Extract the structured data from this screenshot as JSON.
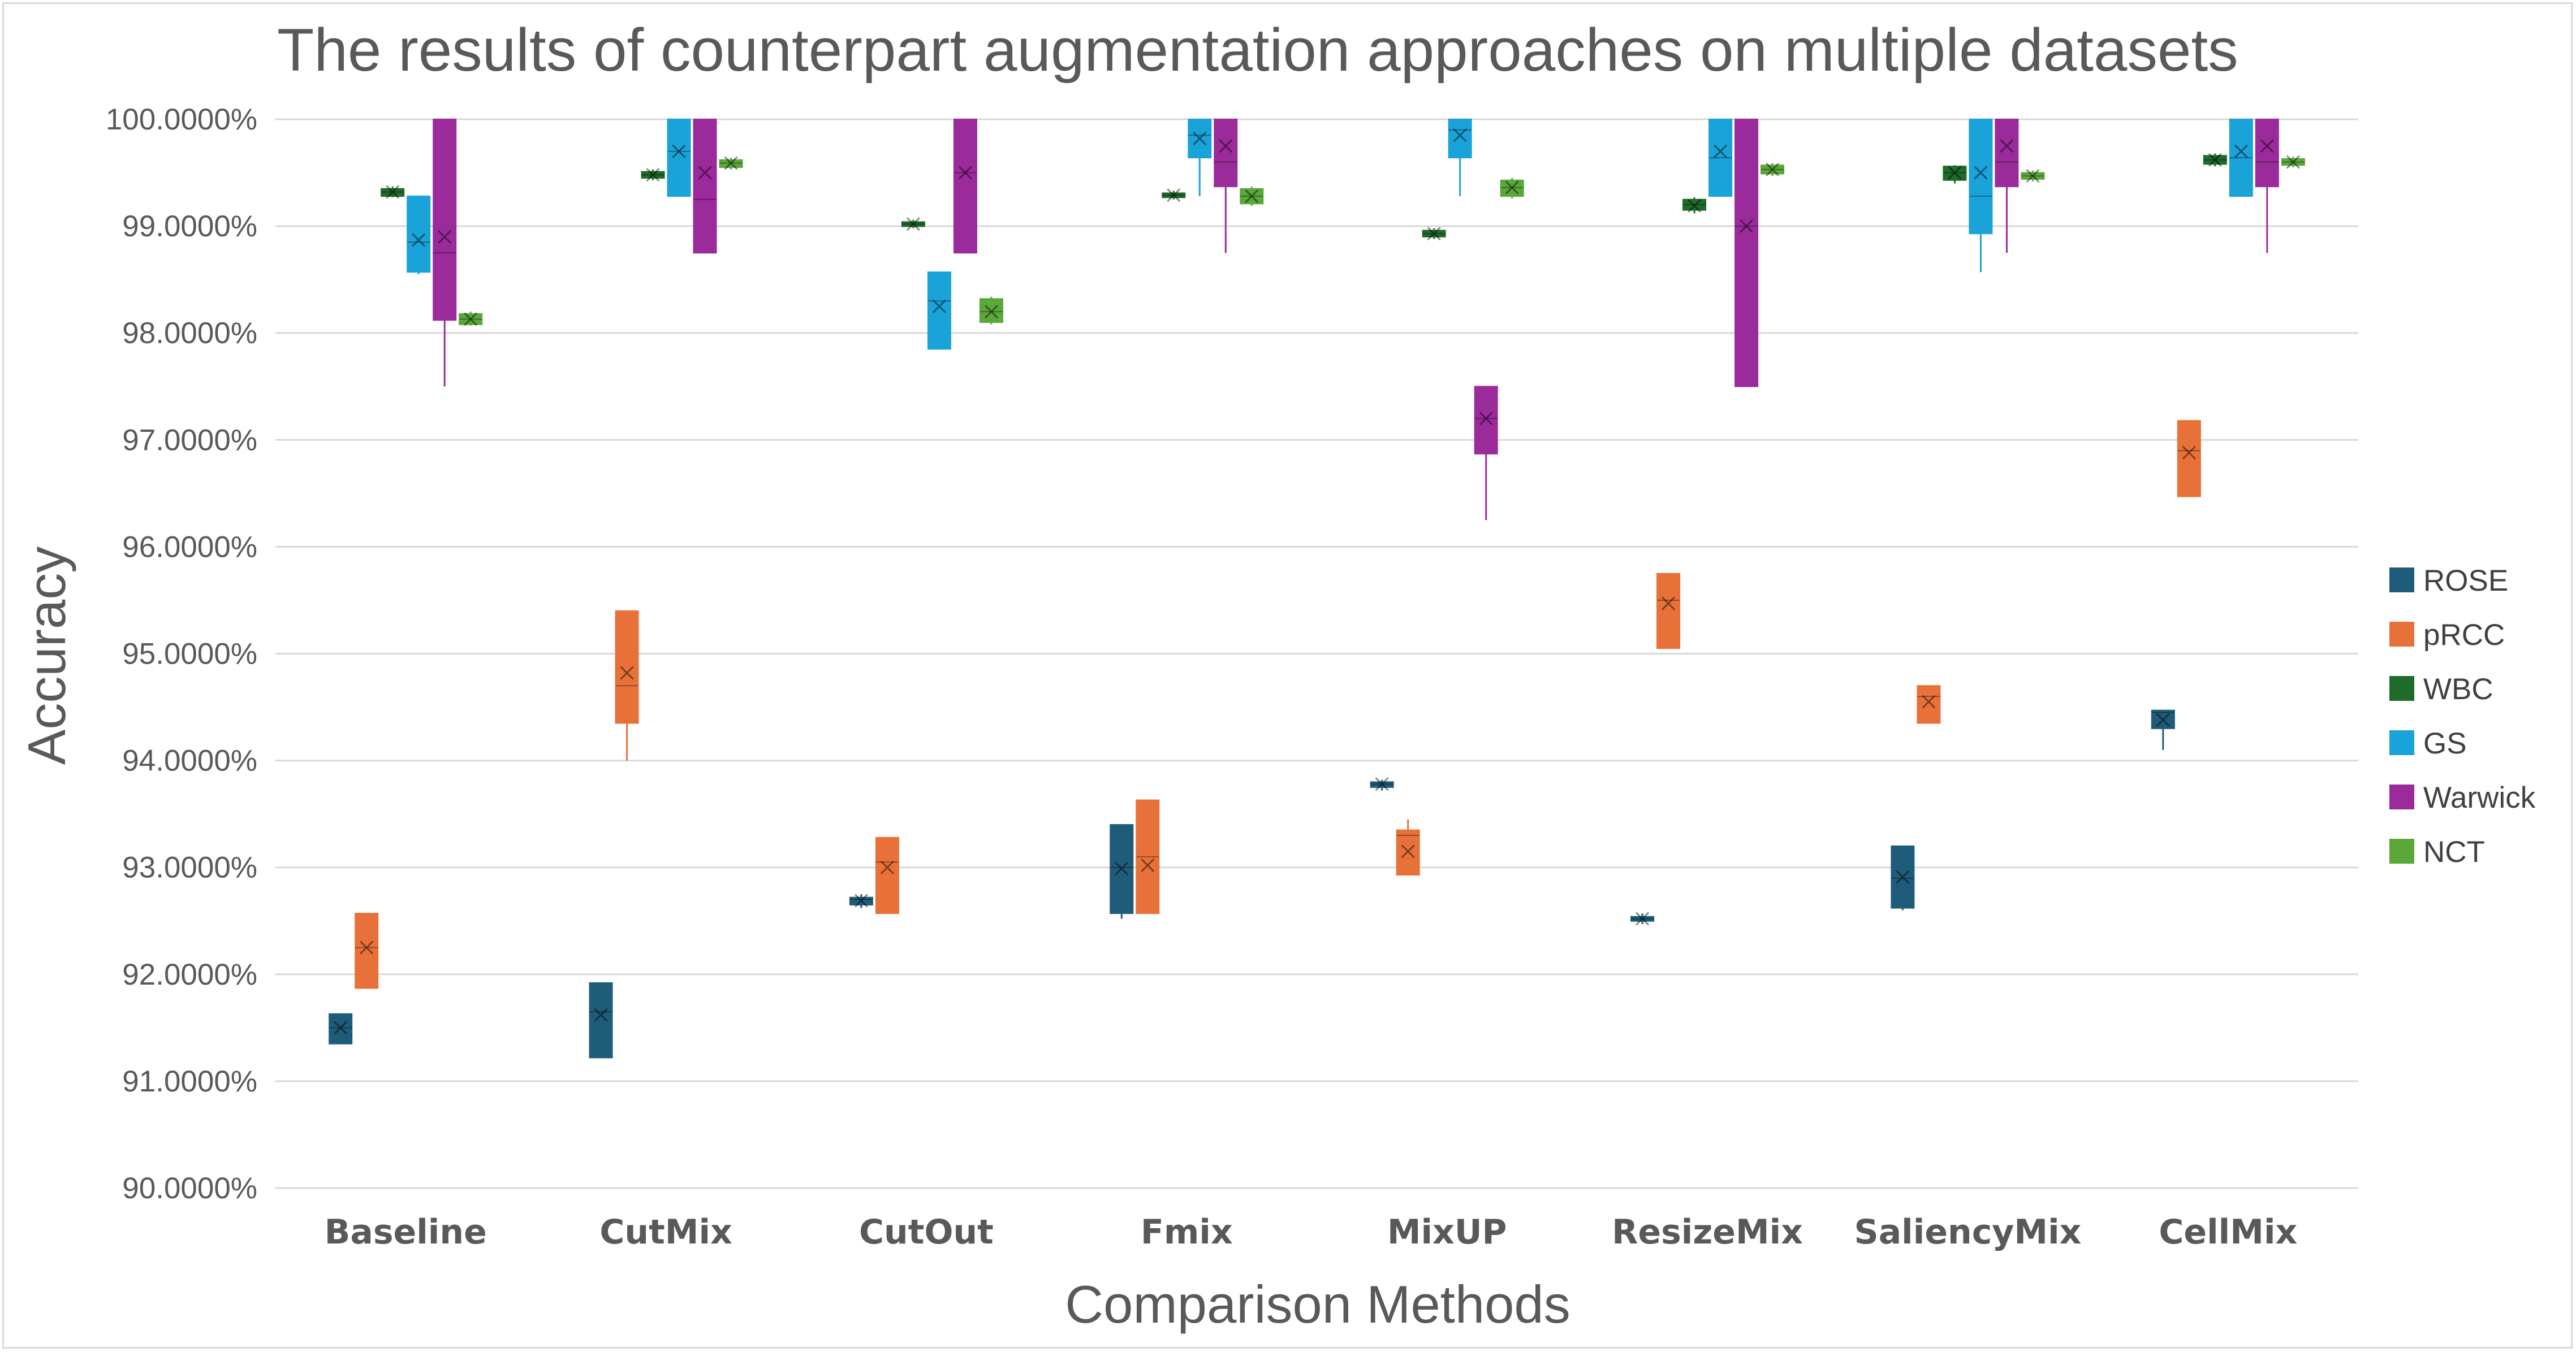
{
  "chart_data": {
    "type": "box",
    "title": "The results of counterpart augmentation approaches on multiple datasets",
    "xlabel": "Comparison Methods",
    "ylabel": "Accuracy",
    "ylim": [
      90,
      100
    ],
    "yticks": [
      "90.0000%",
      "91.0000%",
      "92.0000%",
      "93.0000%",
      "94.0000%",
      "95.0000%",
      "96.0000%",
      "97.0000%",
      "98.0000%",
      "99.0000%",
      "100.0000%"
    ],
    "grid": "horizontal",
    "legend_position": "right",
    "categories": [
      "Baseline",
      "CutMix",
      "CutOut",
      "Fmix",
      "MixUP",
      "ResizeMix",
      "SaliencyMix",
      "CellMix"
    ],
    "series": [
      {
        "name": "ROSE",
        "color": "#1f5c7a",
        "boxes": [
          {
            "min": 91.35,
            "q1": 91.35,
            "median": 91.5,
            "q3": 91.63,
            "max": 91.63,
            "mean": 91.5
          },
          {
            "min": 91.22,
            "q1": 91.22,
            "median": 91.65,
            "q3": 91.92,
            "max": 91.92,
            "mean": 91.62
          },
          {
            "min": 92.62,
            "q1": 92.65,
            "median": 92.7,
            "q3": 92.72,
            "max": 92.75,
            "mean": 92.69
          },
          {
            "min": 92.52,
            "q1": 92.57,
            "median": 93.0,
            "q3": 93.4,
            "max": 93.4,
            "mean": 92.99
          },
          {
            "min": 93.72,
            "q1": 93.75,
            "median": 93.78,
            "q3": 93.8,
            "max": 93.82,
            "mean": 93.78
          },
          {
            "min": 92.47,
            "q1": 92.5,
            "median": 92.52,
            "q3": 92.54,
            "max": 92.57,
            "mean": 92.52
          },
          {
            "min": 92.6,
            "q1": 92.62,
            "median": 92.9,
            "q3": 93.2,
            "max": 93.2,
            "mean": 92.91
          },
          {
            "min": 94.1,
            "q1": 94.3,
            "median": 94.45,
            "q3": 94.47,
            "max": 94.47,
            "mean": 94.38
          }
        ]
      },
      {
        "name": "pRCC",
        "color": "#e8713a",
        "boxes": [
          {
            "min": 91.87,
            "q1": 91.87,
            "median": 92.25,
            "q3": 92.57,
            "max": 92.57,
            "mean": 92.25
          },
          {
            "min": 94.0,
            "q1": 94.35,
            "median": 94.7,
            "q3": 95.4,
            "max": 95.4,
            "mean": 94.82
          },
          {
            "min": 92.57,
            "q1": 92.57,
            "median": 93.05,
            "q3": 93.28,
            "max": 93.28,
            "mean": 93.0
          },
          {
            "min": 92.57,
            "q1": 92.57,
            "median": 93.1,
            "q3": 93.63,
            "max": 93.63,
            "mean": 93.02
          },
          {
            "min": 92.93,
            "q1": 92.93,
            "median": 93.3,
            "q3": 93.35,
            "max": 93.45,
            "mean": 93.15
          },
          {
            "min": 95.05,
            "q1": 95.05,
            "median": 95.5,
            "q3": 95.75,
            "max": 95.75,
            "mean": 95.47
          },
          {
            "min": 94.35,
            "q1": 94.35,
            "median": 94.6,
            "q3": 94.7,
            "max": 94.7,
            "mean": 94.55
          },
          {
            "min": 96.47,
            "q1": 96.47,
            "median": 96.9,
            "q3": 97.18,
            "max": 97.18,
            "mean": 96.88
          }
        ]
      },
      {
        "name": "WBC",
        "color": "#1e6b2a",
        "boxes": [
          {
            "min": 99.27,
            "q1": 99.28,
            "median": 99.32,
            "q3": 99.35,
            "max": 99.37,
            "mean": 99.32
          },
          {
            "min": 99.43,
            "q1": 99.45,
            "median": 99.48,
            "q3": 99.51,
            "max": 99.53,
            "mean": 99.48
          },
          {
            "min": 98.98,
            "q1": 99.0,
            "median": 99.02,
            "q3": 99.04,
            "max": 99.06,
            "mean": 99.02
          },
          {
            "min": 99.25,
            "q1": 99.27,
            "median": 99.29,
            "q3": 99.31,
            "max": 99.33,
            "mean": 99.29
          },
          {
            "min": 98.88,
            "q1": 98.9,
            "median": 98.93,
            "q3": 98.96,
            "max": 98.98,
            "mean": 98.93
          },
          {
            "min": 99.12,
            "q1": 99.15,
            "median": 99.2,
            "q3": 99.25,
            "max": 99.27,
            "mean": 99.19
          },
          {
            "min": 99.4,
            "q1": 99.43,
            "median": 99.5,
            "q3": 99.56,
            "max": 99.57,
            "mean": 99.5
          },
          {
            "min": 99.56,
            "q1": 99.58,
            "median": 99.62,
            "q3": 99.66,
            "max": 99.68,
            "mean": 99.62
          }
        ]
      },
      {
        "name": "GS",
        "color": "#1aa3d9",
        "boxes": [
          {
            "min": 98.55,
            "q1": 98.57,
            "median": 98.85,
            "q3": 99.28,
            "max": 99.28,
            "mean": 98.87
          },
          {
            "min": 99.28,
            "q1": 99.28,
            "median": 99.7,
            "q3": 100.0,
            "max": 100.0,
            "mean": 99.7
          },
          {
            "min": 97.85,
            "q1": 97.85,
            "median": 98.3,
            "q3": 98.57,
            "max": 98.57,
            "mean": 98.25
          },
          {
            "min": 99.28,
            "q1": 99.64,
            "median": 99.85,
            "q3": 100.0,
            "max": 100.0,
            "mean": 99.82
          },
          {
            "min": 99.28,
            "q1": 99.64,
            "median": 99.9,
            "q3": 100.0,
            "max": 100.0,
            "mean": 99.85
          },
          {
            "min": 99.28,
            "q1": 99.28,
            "median": 99.64,
            "q3": 100.0,
            "max": 100.0,
            "mean": 99.7
          },
          {
            "min": 98.57,
            "q1": 98.93,
            "median": 99.28,
            "q3": 100.0,
            "max": 100.0,
            "mean": 99.5
          },
          {
            "min": 99.28,
            "q1": 99.28,
            "median": 99.64,
            "q3": 100.0,
            "max": 100.0,
            "mean": 99.7
          }
        ]
      },
      {
        "name": "Warwick",
        "color": "#9b2a9b",
        "boxes": [
          {
            "min": 97.5,
            "q1": 98.12,
            "median": 98.75,
            "q3": 100.0,
            "max": 100.0,
            "mean": 98.9
          },
          {
            "min": 98.75,
            "q1": 98.75,
            "median": 99.25,
            "q3": 100.0,
            "max": 100.0,
            "mean": 99.5
          },
          {
            "min": 98.75,
            "q1": 98.75,
            "median": 99.5,
            "q3": 100.0,
            "max": 100.0,
            "mean": 99.5
          },
          {
            "min": 98.75,
            "q1": 99.37,
            "median": 99.6,
            "q3": 100.0,
            "max": 100.0,
            "mean": 99.75
          },
          {
            "min": 96.25,
            "q1": 96.87,
            "median": 97.2,
            "q3": 97.5,
            "max": 97.5,
            "mean": 97.2
          },
          {
            "min": 97.5,
            "q1": 97.5,
            "median": 99.0,
            "q3": 100.0,
            "max": 100.0,
            "mean": 99.0
          },
          {
            "min": 98.75,
            "q1": 99.37,
            "median": 99.6,
            "q3": 100.0,
            "max": 100.0,
            "mean": 99.75
          },
          {
            "min": 98.75,
            "q1": 99.37,
            "median": 99.6,
            "q3": 100.0,
            "max": 100.0,
            "mean": 99.75
          }
        ]
      },
      {
        "name": "NCT",
        "color": "#5aa83a",
        "boxes": [
          {
            "min": 98.07,
            "q1": 98.08,
            "median": 98.13,
            "q3": 98.18,
            "max": 98.2,
            "mean": 98.13
          },
          {
            "min": 99.53,
            "q1": 99.55,
            "median": 99.59,
            "q3": 99.62,
            "max": 99.64,
            "mean": 99.59
          },
          {
            "min": 98.08,
            "q1": 98.1,
            "median": 98.2,
            "q3": 98.32,
            "max": 98.34,
            "mean": 98.2
          },
          {
            "min": 99.19,
            "q1": 99.21,
            "median": 99.28,
            "q3": 99.35,
            "max": 99.37,
            "mean": 99.28
          },
          {
            "min": 99.26,
            "q1": 99.28,
            "median": 99.36,
            "q3": 99.43,
            "max": 99.45,
            "mean": 99.36
          },
          {
            "min": 99.47,
            "q1": 99.49,
            "median": 99.53,
            "q3": 99.57,
            "max": 99.59,
            "mean": 99.53
          },
          {
            "min": 99.42,
            "q1": 99.44,
            "median": 99.47,
            "q3": 99.5,
            "max": 99.52,
            "mean": 99.47
          },
          {
            "min": 99.55,
            "q1": 99.57,
            "median": 99.6,
            "q3": 99.63,
            "max": 99.65,
            "mean": 99.6
          }
        ]
      }
    ]
  }
}
